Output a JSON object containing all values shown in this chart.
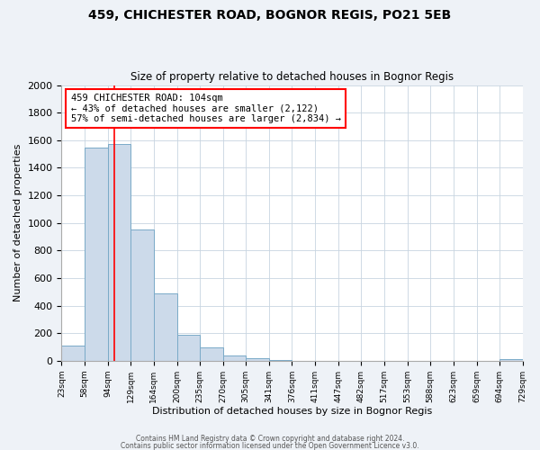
{
  "title": "459, CHICHESTER ROAD, BOGNOR REGIS, PO21 5EB",
  "subtitle": "Size of property relative to detached houses in Bognor Regis",
  "xlabel": "Distribution of detached houses by size in Bognor Regis",
  "ylabel": "Number of detached properties",
  "bar_color": "#ccdaea",
  "bar_edge_color": "#7aaac8",
  "bin_edges": [
    23,
    58,
    94,
    129,
    164,
    200,
    235,
    270,
    305,
    341,
    376,
    411,
    447,
    482,
    517,
    553,
    588,
    623,
    659,
    694,
    729
  ],
  "bin_labels": [
    "23sqm",
    "58sqm",
    "94sqm",
    "129sqm",
    "164sqm",
    "200sqm",
    "235sqm",
    "270sqm",
    "305sqm",
    "341sqm",
    "376sqm",
    "411sqm",
    "447sqm",
    "482sqm",
    "517sqm",
    "553sqm",
    "588sqm",
    "623sqm",
    "659sqm",
    "694sqm",
    "729sqm"
  ],
  "bar_heights": [
    110,
    1545,
    1570,
    950,
    490,
    190,
    100,
    35,
    20,
    5,
    0,
    0,
    0,
    0,
    0,
    0,
    0,
    0,
    0,
    10
  ],
  "ylim": [
    0,
    2000
  ],
  "yticks": [
    0,
    200,
    400,
    600,
    800,
    1000,
    1200,
    1400,
    1600,
    1800,
    2000
  ],
  "red_line_x": 104,
  "ann_line1": "459 CHICHESTER ROAD: 104sqm",
  "ann_line2": "← 43% of detached houses are smaller (2,122)",
  "ann_line3": "57% of semi-detached houses are larger (2,834) →",
  "footer_line1": "Contains HM Land Registry data © Crown copyright and database right 2024.",
  "footer_line2": "Contains public sector information licensed under the Open Government Licence v3.0.",
  "background_color": "#eef2f7",
  "plot_bg_color": "#ffffff",
  "grid_color": "#c8d4e0"
}
